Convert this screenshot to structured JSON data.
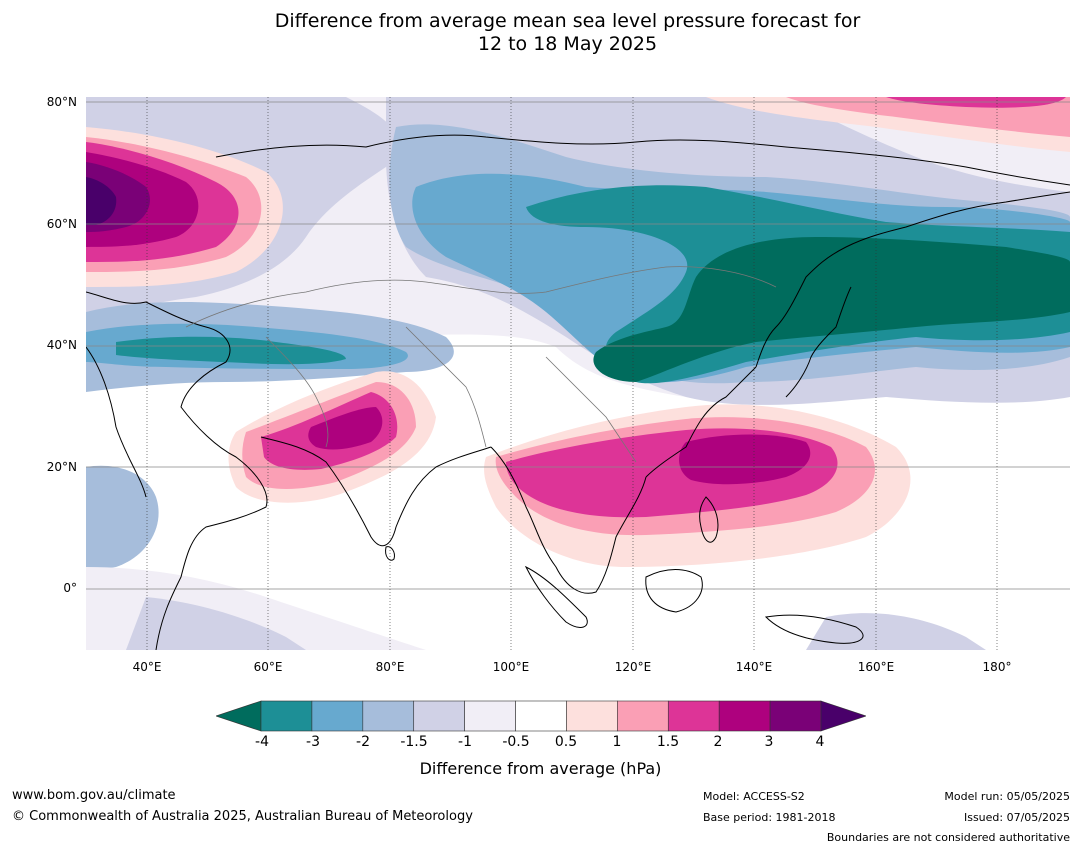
{
  "title": {
    "line1": "Difference from average mean sea level pressure forecast for",
    "line2": "12 to 18 May 2025"
  },
  "map": {
    "lat_labels": [
      "80°N",
      "60°N",
      "40°N",
      "20°N",
      "0°"
    ],
    "lon_labels": [
      "40°E",
      "60°E",
      "80°E",
      "100°E",
      "120°E",
      "140°E",
      "160°E",
      "180°"
    ],
    "extent": {
      "lon": [
        30,
        192
      ],
      "lat": [
        -10,
        81
      ]
    },
    "grid_lons": [
      40,
      60,
      80,
      100,
      120,
      140,
      160,
      180
    ],
    "grid_lats": [
      80,
      60,
      40,
      20,
      0
    ]
  },
  "colorbar": {
    "title": "Difference from average (hPa)",
    "tick_labels": [
      "-4",
      "-3",
      "-2",
      "-1.5",
      "-1",
      "-0.5",
      "0.5",
      "1",
      "1.5",
      "2",
      "3",
      "4"
    ],
    "colors": {
      "below_min": "#006c5d",
      "bins": [
        "#1d8f96",
        "#67a9cf",
        "#a6bddb",
        "#d0d1e6",
        "#f1eef6",
        "#ffffff",
        "#fde0dd",
        "#fa9fb5",
        "#dd3497",
        "#ae017e",
        "#7a0177"
      ],
      "above_max": "#49006a"
    }
  },
  "footer": {
    "website": "www.bom.gov.au/climate",
    "copyright": "© Commonwealth of Australia 2025, Australian Bureau of Meteorology",
    "model": "Model: ACCESS-S2",
    "base_period": "Base period: 1981-2018",
    "model_run": "Model run: 05/05/2025",
    "issued": "Issued: 07/05/2025",
    "disclaimer": "Boundaries are not considered authoritative"
  }
}
